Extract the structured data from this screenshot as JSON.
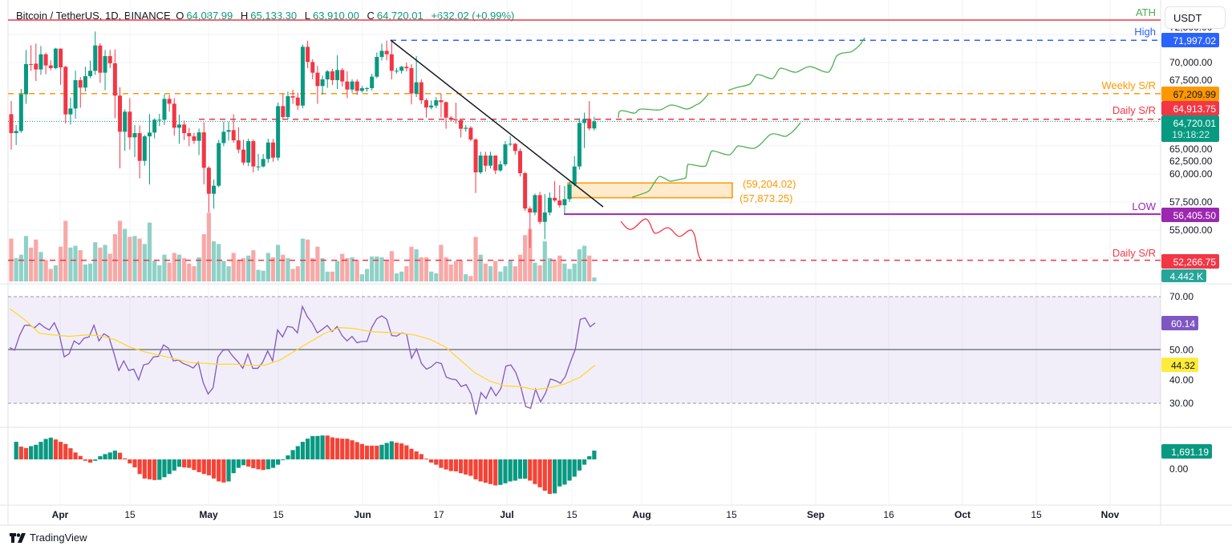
{
  "header": {
    "symbol": "Bitcoin / TetherUS, 1D, BINANCE",
    "o_label": "O",
    "o": "64,087.99",
    "h_label": "H",
    "h": "65,133.30",
    "l_label": "L",
    "l": "63,910.00",
    "c_label": "C",
    "c": "64,720.01",
    "change": "+632.02 (+0.99%)"
  },
  "currency_button": "USDT",
  "branding": {
    "name": "TradingView"
  },
  "colors": {
    "up": "#089981",
    "down": "#f23645",
    "vol_up": "#8fd1c7",
    "vol_down": "#f7a9a7",
    "rsi": "#7e57c2",
    "rsi_ma": "#fdd835",
    "high": "#2962ff",
    "weekly": "#ff9800",
    "low": "#9c27b0",
    "ath": "#f23645",
    "ath_text": "#4caf50"
  },
  "levels": {
    "ath": {
      "label": "ATH"
    },
    "high": {
      "label": "High",
      "price": 71997.02,
      "badge": "71,997.02"
    },
    "weekly_sr": {
      "label": "Weekly S/R",
      "price": 67209.99,
      "badge": "67,209.99"
    },
    "daily_sr_upper": {
      "label": "Daily S/R",
      "price": 64913.75,
      "badge": "64,913.75"
    },
    "last": {
      "price": 64720.01,
      "badge": "64,720.01",
      "countdown": "19:18:22"
    },
    "low": {
      "label": "LOW",
      "price": 56405.5,
      "badge": "56,405.50"
    },
    "daily_sr_lower": {
      "label": "Daily S/R",
      "price": 52266.75,
      "badge": "52,266.75"
    },
    "zone": {
      "top": 59204.02,
      "bottom": 57873.25,
      "top_label": "(59,204.02)",
      "bottom_label": "(57,873.25)"
    },
    "volume_badge": "4.442 K"
  },
  "price_ticks": [
    "72,500.00",
    "70,000.00",
    "67,500.00",
    "65,000.00",
    "62,500.00",
    "60,000.00",
    "57,500.00",
    "55,000.00"
  ],
  "rsi_ticks": [
    "70.00",
    "50.00",
    "40.00",
    "30.00"
  ],
  "rsi_badges": {
    "rsi": "60.14",
    "ma": "44.32"
  },
  "macd_ticks": [
    "0.00"
  ],
  "macd_badge": "1,691.19",
  "time_ticks": [
    "Apr",
    "15",
    "May",
    "15",
    "Jun",
    "17",
    "Jul",
    "15",
    "Aug",
    "15",
    "Sep",
    "16",
    "Oct",
    "15",
    "Nov"
  ],
  "chart_data": {
    "type": "candlestick",
    "title": "Bitcoin / TetherUS, 1D, BINANCE",
    "ylim": [
      52000,
      74000
    ],
    "ohlc": [
      [
        65370,
        66550,
        62190,
        63670
      ],
      [
        63670,
        64400,
        62600,
        63860
      ],
      [
        63860,
        67630,
        63700,
        67150
      ],
      [
        67150,
        71130,
        66300,
        69860
      ],
      [
        69860,
        71550,
        69250,
        69800
      ],
      [
        69900,
        71700,
        68340,
        69380
      ],
      [
        69380,
        71480,
        68900,
        70740
      ],
      [
        70740,
        70890,
        68950,
        69740
      ],
      [
        69740,
        70200,
        69300,
        69500
      ],
      [
        69500,
        71320,
        69400,
        71250
      ],
      [
        71250,
        71250,
        68000,
        69570
      ],
      [
        69620,
        69700,
        64530,
        65350
      ],
      [
        65350,
        66850,
        64450,
        65880
      ],
      [
        65880,
        69270,
        64980,
        68420
      ],
      [
        68420,
        68700,
        65950,
        67750
      ],
      [
        67750,
        69620,
        67400,
        68780
      ],
      [
        68780,
        70170,
        68600,
        69260
      ],
      [
        69260,
        72780,
        68900,
        71530
      ],
      [
        71530,
        71730,
        68180,
        69090
      ],
      [
        69090,
        71130,
        67530,
        70580
      ],
      [
        70580,
        71130,
        69500,
        69930
      ],
      [
        69930,
        71170,
        65010,
        67030
      ],
      [
        67030,
        67790,
        60510,
        63790
      ],
      [
        63790,
        65800,
        62080,
        65590
      ],
      [
        65590,
        66800,
        62190,
        63290
      ],
      [
        63290,
        64400,
        61520,
        63670
      ],
      [
        63670,
        64350,
        59600,
        61180
      ],
      [
        61180,
        63500,
        60750,
        63380
      ],
      [
        63380,
        65380,
        59070,
        63720
      ],
      [
        63720,
        65000,
        63200,
        64870
      ],
      [
        64870,
        65400,
        64300,
        64870
      ],
      [
        64870,
        67160,
        64400,
        66740
      ],
      [
        66740,
        67100,
        65600,
        66310
      ],
      [
        66310,
        66800,
        63450,
        64150
      ],
      [
        64150,
        65330,
        62710,
        64440
      ],
      [
        64440,
        64800,
        63050,
        63670
      ],
      [
        63670,
        64130,
        62490,
        63380
      ],
      [
        63380,
        63700,
        62700,
        62980
      ],
      [
        62980,
        64080,
        61700,
        63740
      ],
      [
        63740,
        64650,
        59070,
        60560
      ],
      [
        60560,
        60700,
        56550,
        58230
      ],
      [
        58230,
        59500,
        56890,
        58950
      ],
      [
        58950,
        63070,
        58800,
        62780
      ],
      [
        62780,
        64700,
        62500,
        63790
      ],
      [
        63790,
        64700,
        63000,
        63940
      ],
      [
        63940,
        65370,
        62800,
        63020
      ],
      [
        63020,
        64200,
        61880,
        62190
      ],
      [
        62190,
        63070,
        60800,
        61030
      ],
      [
        61030,
        63170,
        60700,
        62950
      ],
      [
        62950,
        63100,
        60150,
        60680
      ],
      [
        60680,
        61800,
        60300,
        60680
      ],
      [
        60680,
        61800,
        60600,
        61350
      ],
      [
        61350,
        63170,
        61000,
        62830
      ],
      [
        62830,
        63150,
        61100,
        61470
      ],
      [
        61470,
        66400,
        61200,
        66090
      ],
      [
        66090,
        67210,
        64950,
        65110
      ],
      [
        65110,
        67400,
        64900,
        66980
      ],
      [
        66980,
        67540,
        66300,
        66860
      ],
      [
        66860,
        67300,
        65750,
        66140
      ],
      [
        66140,
        71600,
        65900,
        71410
      ],
      [
        71410,
        71960,
        69500,
        70050
      ],
      [
        70050,
        70300,
        68500,
        69090
      ],
      [
        69090,
        69700,
        66300,
        67890
      ],
      [
        67890,
        68820,
        67130,
        68490
      ],
      [
        68490,
        69330,
        67730,
        69210
      ],
      [
        69210,
        69440,
        67980,
        68420
      ],
      [
        68420,
        70660,
        67620,
        69330
      ],
      [
        69330,
        69500,
        67840,
        68300
      ],
      [
        68300,
        69210,
        66800,
        67580
      ],
      [
        67580,
        68500,
        67300,
        68300
      ],
      [
        68300,
        68500,
        67100,
        67460
      ],
      [
        67460,
        67900,
        67300,
        67700
      ],
      [
        67700,
        67800,
        67400,
        67700
      ],
      [
        67700,
        69000,
        67500,
        68730
      ],
      [
        68730,
        70900,
        68600,
        70500
      ],
      [
        70500,
        71700,
        70200,
        71050
      ],
      [
        71050,
        71970,
        70200,
        70740
      ],
      [
        70740,
        71970,
        68500,
        69260
      ],
      [
        69260,
        69500,
        69000,
        69260
      ],
      [
        69260,
        69700,
        69000,
        69620
      ],
      [
        69620,
        70000,
        69200,
        69500
      ],
      [
        69500,
        69860,
        66240,
        67220
      ],
      [
        67220,
        70580,
        66900,
        68230
      ],
      [
        68230,
        68500,
        66270,
        66620
      ],
      [
        66620,
        66800,
        65070,
        65970
      ],
      [
        65970,
        66600,
        65800,
        66140
      ],
      [
        66140,
        66900,
        65900,
        66620
      ],
      [
        66620,
        67200,
        65070,
        66450
      ],
      [
        66450,
        66500,
        64060,
        65060
      ],
      [
        65060,
        65200,
        64700,
        64890
      ],
      [
        64890,
        66400,
        64500,
        64820
      ],
      [
        64820,
        64900,
        63290,
        64060
      ],
      [
        64060,
        64400,
        63800,
        64150
      ],
      [
        64150,
        64300,
        62950,
        63100
      ],
      [
        63100,
        63200,
        58300,
        60150
      ],
      [
        60150,
        62000,
        60000,
        61660
      ],
      [
        61660,
        62000,
        60200,
        60750
      ],
      [
        60750,
        62000,
        60500,
        61660
      ],
      [
        61660,
        61660,
        60000,
        60320
      ],
      [
        60320,
        61200,
        60200,
        60870
      ],
      [
        60870,
        62950,
        60700,
        62660
      ],
      [
        62660,
        63400,
        62500,
        62710
      ],
      [
        62710,
        62800,
        61750,
        62070
      ],
      [
        62070,
        62300,
        59780,
        60080
      ],
      [
        60080,
        60200,
        56700,
        56910
      ],
      [
        56910,
        57100,
        53370,
        56550
      ],
      [
        56550,
        58250,
        56300,
        58110
      ],
      [
        58110,
        58400,
        55500,
        55710
      ],
      [
        55710,
        58200,
        54160,
        56550
      ],
      [
        56550,
        58350,
        56300,
        57870
      ],
      [
        57870,
        59370,
        57500,
        57630
      ],
      [
        57630,
        59000,
        57000,
        57200
      ],
      [
        57200,
        58910,
        56450,
        57750
      ],
      [
        57750,
        59300,
        57500,
        59070
      ],
      [
        59070,
        61600,
        58900,
        60680
      ],
      [
        60680,
        65000,
        60400,
        64580
      ],
      [
        64580,
        65500,
        62330,
        64940
      ],
      [
        64940,
        66550,
        63910,
        64090
      ],
      [
        64087.99,
        65133.3,
        63910.0,
        64720.01
      ]
    ],
    "volume_k": [
      48,
      26,
      30,
      51,
      38,
      47,
      33,
      24,
      14,
      18,
      39,
      68,
      38,
      40,
      35,
      19,
      20,
      44,
      38,
      41,
      31,
      53,
      68,
      59,
      50,
      51,
      48,
      42,
      66,
      23,
      18,
      30,
      21,
      32,
      30,
      26,
      20,
      17,
      27,
      53,
      77,
      45,
      42,
      23,
      17,
      32,
      24,
      26,
      29,
      35,
      13,
      12,
      32,
      27,
      41,
      30,
      26,
      14,
      17,
      48,
      47,
      26,
      39,
      26,
      11,
      11,
      23,
      31,
      26,
      27,
      24,
      8,
      14,
      28,
      28,
      27,
      23,
      34,
      9,
      11,
      17,
      39,
      36,
      27,
      27,
      11,
      9,
      41,
      27,
      19,
      23,
      24,
      8,
      6,
      50,
      30,
      20,
      17,
      23,
      11,
      17,
      23,
      17,
      30,
      52,
      59,
      21,
      18,
      45,
      26,
      23,
      29,
      20,
      14,
      20,
      36,
      40,
      29,
      4.442
    ],
    "rsi": {
      "ylim": [
        30,
        70
      ],
      "bands": [
        30,
        50,
        70
      ],
      "values": [
        50.9,
        49.9,
        55.4,
        59.2,
        59.3,
        58.3,
        60,
        58.5,
        57.5,
        60.2,
        56,
        47.4,
        48.6,
        53.4,
        52.1,
        54.4,
        54.9,
        59.3,
        53.4,
        56.1,
        54.9,
        48.9,
        42.3,
        45.9,
        42.3,
        42.8,
        38.8,
        44.4,
        44.9,
        47.4,
        47.6,
        51.9,
        50.7,
        45.9,
        46.2,
        44.9,
        44.2,
        43.2,
        45.4,
        37.8,
        33.5,
        35.8,
        47.4,
        49.9,
        50.1,
        47.6,
        45.6,
        43.1,
        48.4,
        43.1,
        43.1,
        45.4,
        49.6,
        45.9,
        57.5,
        54.9,
        58.8,
        58.5,
        56.4,
        66.3,
        62.5,
        60,
        56.4,
        57.7,
        59.2,
        56.9,
        58.8,
        55.4,
        53.4,
        55.1,
        52.7,
        53.2,
        53.2,
        58.5,
        61.7,
        62.8,
        61.5,
        55.4,
        55.2,
        56.4,
        55.9,
        46.9,
        50.4,
        44.9,
        42.8,
        43.7,
        45.4,
        44.9,
        39.8,
        39.1,
        38.8,
        36.3,
        37,
        33.5,
        25.7,
        34,
        31.8,
        36,
        32.8,
        35.5,
        43.9,
        44.4,
        41.6,
        36.3,
        28.8,
        28.1,
        35.3,
        30.5,
        33.8,
        39.1,
        38.5,
        37.5,
        40,
        45.4,
        50.2,
        61.5,
        62,
        58.7,
        60.14
      ],
      "ma_values": [
        65.5,
        61.4,
        56.2,
        55.6,
        55.1,
        55.6,
        55.4,
        53.9,
        51.1,
        49.3,
        48.0,
        46.7,
        45.3,
        45.0,
        44.6,
        44.7,
        44.2,
        44.3,
        46.2,
        49.6,
        53.0,
        56.3,
        58.4,
        58.0,
        56.9,
        56.6,
        56.3,
        55.6,
        54.0,
        51.2,
        46.3,
        41.4,
        38.3,
        36.5,
        36.3,
        35.1,
        35.9,
        37.3,
        39.8,
        44.32
      ]
    },
    "macd_histogram": [
      3370,
      2450,
      2190,
      2550,
      2810,
      3370,
      3930,
      4180,
      3830,
      3370,
      2960,
      2140,
      1330,
      660,
      -260,
      -610,
      -260,
      610,
      1020,
      1330,
      1680,
      1280,
      200,
      -770,
      -1530,
      -2810,
      -3670,
      -3830,
      -3980,
      -3930,
      -3420,
      -2810,
      -2140,
      -1430,
      -1530,
      -1630,
      -2040,
      -2450,
      -2810,
      -3060,
      -3670,
      -4230,
      -4440,
      -4230,
      -2650,
      -1630,
      -1120,
      -1380,
      -1680,
      -1890,
      -2040,
      -1890,
      -1630,
      -1020,
      -150,
      770,
      1790,
      2550,
      3370,
      3980,
      4490,
      4500,
      4590,
      4580,
      4230,
      4080,
      3980,
      3970,
      3670,
      3320,
      2960,
      2650,
      2640,
      2630,
      2810,
      3160,
      3470,
      3210,
      3060,
      2700,
      2040,
      1530,
      1020,
      150,
      -610,
      -1020,
      -1630,
      -1940,
      -2240,
      -2300,
      -2650,
      -2910,
      -3160,
      -3830,
      -4230,
      -4490,
      -4740,
      -5000,
      -4900,
      -4590,
      -4230,
      -4080,
      -3720,
      -3700,
      -4080,
      -4740,
      -5360,
      -6020,
      -6630,
      -6530,
      -5200,
      -4850,
      -4080,
      -3320,
      -2140,
      -1020,
      610,
      1691.19
    ]
  }
}
